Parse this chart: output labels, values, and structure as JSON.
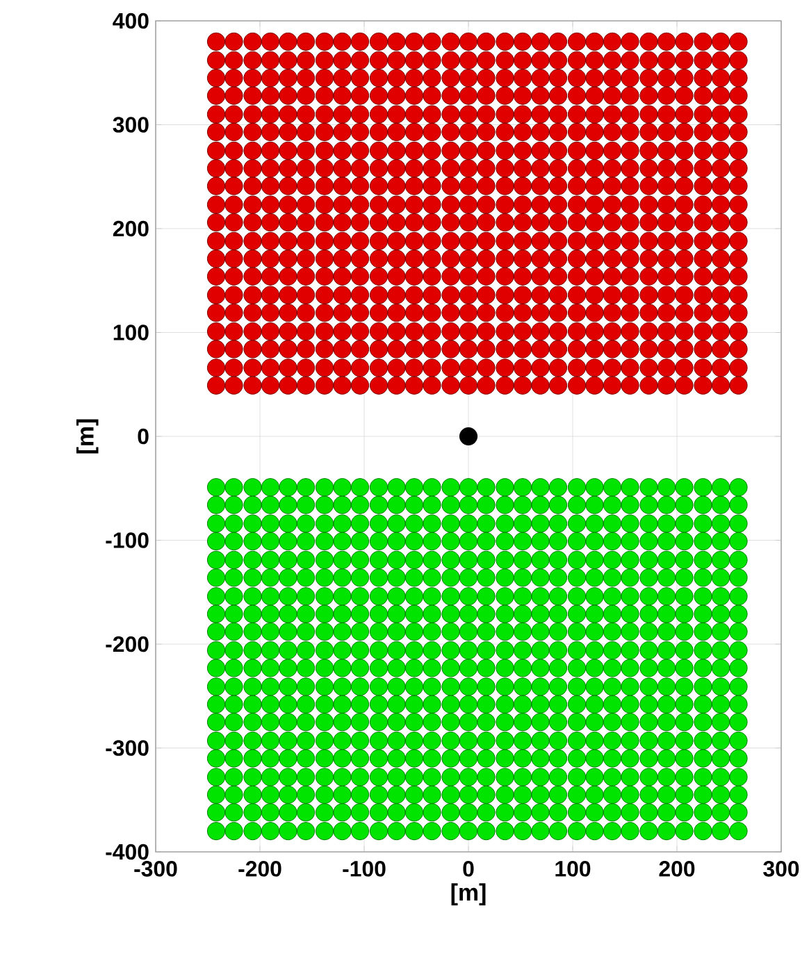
{
  "chart_data": {
    "type": "scatter",
    "xlabel": "[m]",
    "ylabel": "[m]",
    "xlim": [
      -300,
      300
    ],
    "ylim": [
      -400,
      400
    ],
    "xticks": [
      -300,
      -200,
      -100,
      0,
      100,
      200,
      300
    ],
    "yticks": [
      -400,
      -300,
      -200,
      -100,
      0,
      100,
      200,
      300,
      400
    ],
    "grid": true,
    "marker": "circle",
    "x": [
      -242,
      -225,
      -207,
      -190,
      -173,
      -156,
      -138,
      -121,
      -104,
      -86,
      -69,
      -52,
      -35,
      -17,
      0,
      17,
      35,
      52,
      69,
      86,
      104,
      121,
      138,
      155,
      173,
      190,
      207,
      225,
      242,
      259
    ],
    "series": [
      {
        "color": "#e00000",
        "values": [
          380,
          380,
          380,
          380,
          380,
          380,
          380,
          380,
          380,
          380,
          380,
          380,
          380,
          380,
          380,
          380,
          380,
          380,
          380,
          380,
          380,
          380,
          380,
          380,
          380,
          380,
          380,
          380,
          380,
          380
        ]
      },
      {
        "color": "#e00000",
        "values": [
          362,
          362,
          362,
          362,
          362,
          362,
          362,
          362,
          362,
          362,
          362,
          362,
          362,
          362,
          362,
          362,
          362,
          362,
          362,
          362,
          362,
          362,
          362,
          362,
          362,
          362,
          362,
          362,
          362,
          362
        ]
      },
      {
        "color": "#e00000",
        "values": [
          345,
          345,
          345,
          345,
          345,
          345,
          345,
          345,
          345,
          345,
          345,
          345,
          345,
          345,
          345,
          345,
          345,
          345,
          345,
          345,
          345,
          345,
          345,
          345,
          345,
          345,
          345,
          345,
          345,
          345
        ]
      },
      {
        "color": "#e00000",
        "values": [
          328,
          328,
          328,
          328,
          328,
          328,
          328,
          328,
          328,
          328,
          328,
          328,
          328,
          328,
          328,
          328,
          328,
          328,
          328,
          328,
          328,
          328,
          328,
          328,
          328,
          328,
          328,
          328,
          328,
          328
        ]
      },
      {
        "color": "#e00000",
        "values": [
          310,
          310,
          310,
          310,
          310,
          310,
          310,
          310,
          310,
          310,
          310,
          310,
          310,
          310,
          310,
          310,
          310,
          310,
          310,
          310,
          310,
          310,
          310,
          310,
          310,
          310,
          310,
          310,
          310,
          310
        ]
      },
      {
        "color": "#e00000",
        "values": [
          293,
          293,
          293,
          293,
          293,
          293,
          293,
          293,
          293,
          293,
          293,
          293,
          293,
          293,
          293,
          293,
          293,
          293,
          293,
          293,
          293,
          293,
          293,
          293,
          293,
          293,
          293,
          293,
          293,
          293
        ]
      },
      {
        "color": "#e00000",
        "values": [
          275,
          275,
          275,
          275,
          275,
          275,
          275,
          275,
          275,
          275,
          275,
          275,
          275,
          275,
          275,
          275,
          275,
          275,
          275,
          275,
          275,
          275,
          275,
          275,
          275,
          275,
          275,
          275,
          275,
          275
        ]
      },
      {
        "color": "#e00000",
        "values": [
          258,
          258,
          258,
          258,
          258,
          258,
          258,
          258,
          258,
          258,
          258,
          258,
          258,
          258,
          258,
          258,
          258,
          258,
          258,
          258,
          258,
          258,
          258,
          258,
          258,
          258,
          258,
          258,
          258,
          258
        ]
      },
      {
        "color": "#e00000",
        "values": [
          241,
          241,
          241,
          241,
          241,
          241,
          241,
          241,
          241,
          241,
          241,
          241,
          241,
          241,
          241,
          241,
          241,
          241,
          241,
          241,
          241,
          241,
          241,
          241,
          241,
          241,
          241,
          241,
          241,
          241
        ]
      },
      {
        "color": "#e00000",
        "values": [
          223,
          223,
          223,
          223,
          223,
          223,
          223,
          223,
          223,
          223,
          223,
          223,
          223,
          223,
          223,
          223,
          223,
          223,
          223,
          223,
          223,
          223,
          223,
          223,
          223,
          223,
          223,
          223,
          223,
          223
        ]
      },
      {
        "color": "#e00000",
        "values": [
          206,
          206,
          206,
          206,
          206,
          206,
          206,
          206,
          206,
          206,
          206,
          206,
          206,
          206,
          206,
          206,
          206,
          206,
          206,
          206,
          206,
          206,
          206,
          206,
          206,
          206,
          206,
          206,
          206,
          206
        ]
      },
      {
        "color": "#e00000",
        "values": [
          188,
          188,
          188,
          188,
          188,
          188,
          188,
          188,
          188,
          188,
          188,
          188,
          188,
          188,
          188,
          188,
          188,
          188,
          188,
          188,
          188,
          188,
          188,
          188,
          188,
          188,
          188,
          188,
          188,
          188
        ]
      },
      {
        "color": "#e00000",
        "values": [
          171,
          171,
          171,
          171,
          171,
          171,
          171,
          171,
          171,
          171,
          171,
          171,
          171,
          171,
          171,
          171,
          171,
          171,
          171,
          171,
          171,
          171,
          171,
          171,
          171,
          171,
          171,
          171,
          171,
          171
        ]
      },
      {
        "color": "#e00000",
        "values": [
          154,
          154,
          154,
          154,
          154,
          154,
          154,
          154,
          154,
          154,
          154,
          154,
          154,
          154,
          154,
          154,
          154,
          154,
          154,
          154,
          154,
          154,
          154,
          154,
          154,
          154,
          154,
          154,
          154,
          154
        ]
      },
      {
        "color": "#e00000",
        "values": [
          136,
          136,
          136,
          136,
          136,
          136,
          136,
          136,
          136,
          136,
          136,
          136,
          136,
          136,
          136,
          136,
          136,
          136,
          136,
          136,
          136,
          136,
          136,
          136,
          136,
          136,
          136,
          136,
          136,
          136
        ]
      },
      {
        "color": "#e00000",
        "values": [
          119,
          119,
          119,
          119,
          119,
          119,
          119,
          119,
          119,
          119,
          119,
          119,
          119,
          119,
          119,
          119,
          119,
          119,
          119,
          119,
          119,
          119,
          119,
          119,
          119,
          119,
          119,
          119,
          119,
          119
        ]
      },
      {
        "color": "#e00000",
        "values": [
          101,
          101,
          101,
          101,
          101,
          101,
          101,
          101,
          101,
          101,
          101,
          101,
          101,
          101,
          101,
          101,
          101,
          101,
          101,
          101,
          101,
          101,
          101,
          101,
          101,
          101,
          101,
          101,
          101,
          101
        ]
      },
      {
        "color": "#e00000",
        "values": [
          84,
          84,
          84,
          84,
          84,
          84,
          84,
          84,
          84,
          84,
          84,
          84,
          84,
          84,
          84,
          84,
          84,
          84,
          84,
          84,
          84,
          84,
          84,
          84,
          84,
          84,
          84,
          84,
          84,
          84
        ]
      },
      {
        "color": "#e00000",
        "values": [
          66,
          66,
          66,
          66,
          66,
          66,
          66,
          66,
          66,
          66,
          66,
          66,
          66,
          66,
          66,
          66,
          66,
          66,
          66,
          66,
          66,
          66,
          66,
          66,
          66,
          66,
          66,
          66,
          66,
          66
        ]
      },
      {
        "color": "#e00000",
        "values": [
          49,
          49,
          49,
          49,
          49,
          49,
          49,
          49,
          49,
          49,
          49,
          49,
          49,
          49,
          49,
          49,
          49,
          49,
          49,
          49,
          49,
          49,
          49,
          49,
          49,
          49,
          49,
          49,
          49,
          49
        ]
      },
      {
        "color": "#00e400",
        "values": [
          -49,
          -49,
          -49,
          -49,
          -49,
          -49,
          -49,
          -49,
          -49,
          -49,
          -49,
          -49,
          -49,
          -49,
          -49,
          -49,
          -49,
          -49,
          -49,
          -49,
          -49,
          -49,
          -49,
          -49,
          -49,
          -49,
          -49,
          -49,
          -49,
          -49
        ]
      },
      {
        "color": "#00e400",
        "values": [
          -66,
          -66,
          -66,
          -66,
          -66,
          -66,
          -66,
          -66,
          -66,
          -66,
          -66,
          -66,
          -66,
          -66,
          -66,
          -66,
          -66,
          -66,
          -66,
          -66,
          -66,
          -66,
          -66,
          -66,
          -66,
          -66,
          -66,
          -66,
          -66,
          -66
        ]
      },
      {
        "color": "#00e400",
        "values": [
          -84,
          -84,
          -84,
          -84,
          -84,
          -84,
          -84,
          -84,
          -84,
          -84,
          -84,
          -84,
          -84,
          -84,
          -84,
          -84,
          -84,
          -84,
          -84,
          -84,
          -84,
          -84,
          -84,
          -84,
          -84,
          -84,
          -84,
          -84,
          -84,
          -84
        ]
      },
      {
        "color": "#00e400",
        "values": [
          -101,
          -101,
          -101,
          -101,
          -101,
          -101,
          -101,
          -101,
          -101,
          -101,
          -101,
          -101,
          -101,
          -101,
          -101,
          -101,
          -101,
          -101,
          -101,
          -101,
          -101,
          -101,
          -101,
          -101,
          -101,
          -101,
          -101,
          -101,
          -101,
          -101
        ]
      },
      {
        "color": "#00e400",
        "values": [
          -119,
          -119,
          -119,
          -119,
          -119,
          -119,
          -119,
          -119,
          -119,
          -119,
          -119,
          -119,
          -119,
          -119,
          -119,
          -119,
          -119,
          -119,
          -119,
          -119,
          -119,
          -119,
          -119,
          -119,
          -119,
          -119,
          -119,
          -119,
          -119,
          -119
        ]
      },
      {
        "color": "#00e400",
        "values": [
          -136,
          -136,
          -136,
          -136,
          -136,
          -136,
          -136,
          -136,
          -136,
          -136,
          -136,
          -136,
          -136,
          -136,
          -136,
          -136,
          -136,
          -136,
          -136,
          -136,
          -136,
          -136,
          -136,
          -136,
          -136,
          -136,
          -136,
          -136,
          -136,
          -136
        ]
      },
      {
        "color": "#00e400",
        "values": [
          -154,
          -154,
          -154,
          -154,
          -154,
          -154,
          -154,
          -154,
          -154,
          -154,
          -154,
          -154,
          -154,
          -154,
          -154,
          -154,
          -154,
          -154,
          -154,
          -154,
          -154,
          -154,
          -154,
          -154,
          -154,
          -154,
          -154,
          -154,
          -154,
          -154
        ]
      },
      {
        "color": "#00e400",
        "values": [
          -171,
          -171,
          -171,
          -171,
          -171,
          -171,
          -171,
          -171,
          -171,
          -171,
          -171,
          -171,
          -171,
          -171,
          -171,
          -171,
          -171,
          -171,
          -171,
          -171,
          -171,
          -171,
          -171,
          -171,
          -171,
          -171,
          -171,
          -171,
          -171,
          -171
        ]
      },
      {
        "color": "#00e400",
        "values": [
          -188,
          -188,
          -188,
          -188,
          -188,
          -188,
          -188,
          -188,
          -188,
          -188,
          -188,
          -188,
          -188,
          -188,
          -188,
          -188,
          -188,
          -188,
          -188,
          -188,
          -188,
          -188,
          -188,
          -188,
          -188,
          -188,
          -188,
          -188,
          -188,
          -188
        ]
      },
      {
        "color": "#00e400",
        "values": [
          -206,
          -206,
          -206,
          -206,
          -206,
          -206,
          -206,
          -206,
          -206,
          -206,
          -206,
          -206,
          -206,
          -206,
          -206,
          -206,
          -206,
          -206,
          -206,
          -206,
          -206,
          -206,
          -206,
          -206,
          -206,
          -206,
          -206,
          -206,
          -206,
          -206
        ]
      },
      {
        "color": "#00e400",
        "values": [
          -223,
          -223,
          -223,
          -223,
          -223,
          -223,
          -223,
          -223,
          -223,
          -223,
          -223,
          -223,
          -223,
          -223,
          -223,
          -223,
          -223,
          -223,
          -223,
          -223,
          -223,
          -223,
          -223,
          -223,
          -223,
          -223,
          -223,
          -223,
          -223,
          -223
        ]
      },
      {
        "color": "#00e400",
        "values": [
          -241,
          -241,
          -241,
          -241,
          -241,
          -241,
          -241,
          -241,
          -241,
          -241,
          -241,
          -241,
          -241,
          -241,
          -241,
          -241,
          -241,
          -241,
          -241,
          -241,
          -241,
          -241,
          -241,
          -241,
          -241,
          -241,
          -241,
          -241,
          -241,
          -241
        ]
      },
      {
        "color": "#00e400",
        "values": [
          -258,
          -258,
          -258,
          -258,
          -258,
          -258,
          -258,
          -258,
          -258,
          -258,
          -258,
          -258,
          -258,
          -258,
          -258,
          -258,
          -258,
          -258,
          -258,
          -258,
          -258,
          -258,
          -258,
          -258,
          -258,
          -258,
          -258,
          -258,
          -258,
          -258
        ]
      },
      {
        "color": "#00e400",
        "values": [
          -275,
          -275,
          -275,
          -275,
          -275,
          -275,
          -275,
          -275,
          -275,
          -275,
          -275,
          -275,
          -275,
          -275,
          -275,
          -275,
          -275,
          -275,
          -275,
          -275,
          -275,
          -275,
          -275,
          -275,
          -275,
          -275,
          -275,
          -275,
          -275,
          -275
        ]
      },
      {
        "color": "#00e400",
        "values": [
          -293,
          -293,
          -293,
          -293,
          -293,
          -293,
          -293,
          -293,
          -293,
          -293,
          -293,
          -293,
          -293,
          -293,
          -293,
          -293,
          -293,
          -293,
          -293,
          -293,
          -293,
          -293,
          -293,
          -293,
          -293,
          -293,
          -293,
          -293,
          -293,
          -293
        ]
      },
      {
        "color": "#00e400",
        "values": [
          -310,
          -310,
          -310,
          -310,
          -310,
          -310,
          -310,
          -310,
          -310,
          -310,
          -310,
          -310,
          -310,
          -310,
          -310,
          -310,
          -310,
          -310,
          -310,
          -310,
          -310,
          -310,
          -310,
          -310,
          -310,
          -310,
          -310,
          -310,
          -310,
          -310
        ]
      },
      {
        "color": "#00e400",
        "values": [
          -328,
          -328,
          -328,
          -328,
          -328,
          -328,
          -328,
          -328,
          -328,
          -328,
          -328,
          -328,
          -328,
          -328,
          -328,
          -328,
          -328,
          -328,
          -328,
          -328,
          -328,
          -328,
          -328,
          -328,
          -328,
          -328,
          -328,
          -328,
          -328,
          -328
        ]
      },
      {
        "color": "#00e400",
        "values": [
          -345,
          -345,
          -345,
          -345,
          -345,
          -345,
          -345,
          -345,
          -345,
          -345,
          -345,
          -345,
          -345,
          -345,
          -345,
          -345,
          -345,
          -345,
          -345,
          -345,
          -345,
          -345,
          -345,
          -345,
          -345,
          -345,
          -345,
          -345,
          -345,
          -345
        ]
      },
      {
        "color": "#00e400",
        "values": [
          -362,
          -362,
          -362,
          -362,
          -362,
          -362,
          -362,
          -362,
          -362,
          -362,
          -362,
          -362,
          -362,
          -362,
          -362,
          -362,
          -362,
          -362,
          -362,
          -362,
          -362,
          -362,
          -362,
          -362,
          -362,
          -362,
          -362,
          -362,
          -362,
          -362
        ]
      },
      {
        "color": "#00e400",
        "values": [
          -380,
          -380,
          -380,
          -380,
          -380,
          -380,
          -380,
          -380,
          -380,
          -380,
          -380,
          -380,
          -380,
          -380,
          -380,
          -380,
          -380,
          -380,
          -380,
          -380,
          -380,
          -380,
          -380,
          -380,
          -380,
          -380,
          -380,
          -380,
          -380,
          -380
        ]
      },
      {
        "color": "#000000",
        "x": [
          0
        ],
        "values": [
          0
        ]
      }
    ]
  }
}
